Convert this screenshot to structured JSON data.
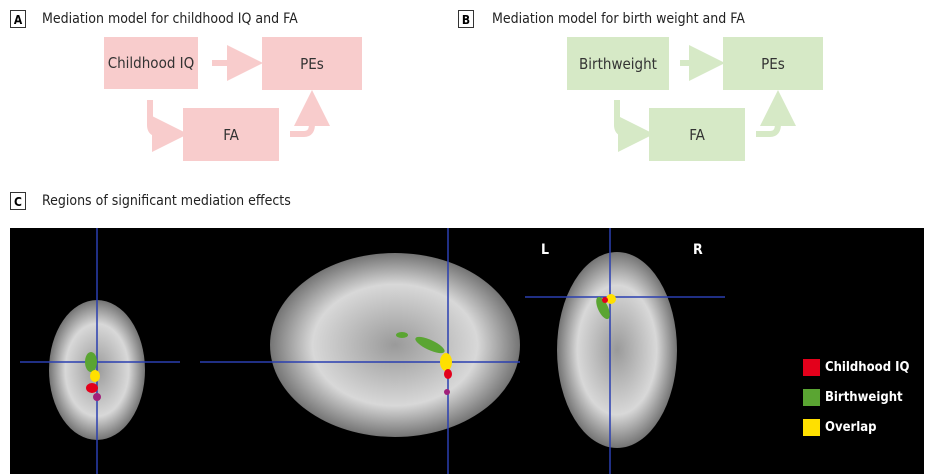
{
  "panels": [
    {
      "label": "A",
      "title": "Mediation model for childhood IQ and FA",
      "nodes": [
        "Childhood IQ",
        "PEs",
        "FA"
      ]
    },
    {
      "label": "B",
      "title": "Mediation model for birth weight and FA",
      "nodes": [
        "Birthweight",
        "PEs",
        "FA"
      ]
    }
  ],
  "panel_c": {
    "label": "C",
    "title": "Regions of significant mediation effects",
    "orientation": [
      "L",
      "R"
    ],
    "legend": [
      {
        "name": "Childhood IQ",
        "color": "#e3001b"
      },
      {
        "name": "Birthweight",
        "color": "#5aa532"
      },
      {
        "name": "Overlap",
        "color": "#ffe000"
      }
    ]
  }
}
